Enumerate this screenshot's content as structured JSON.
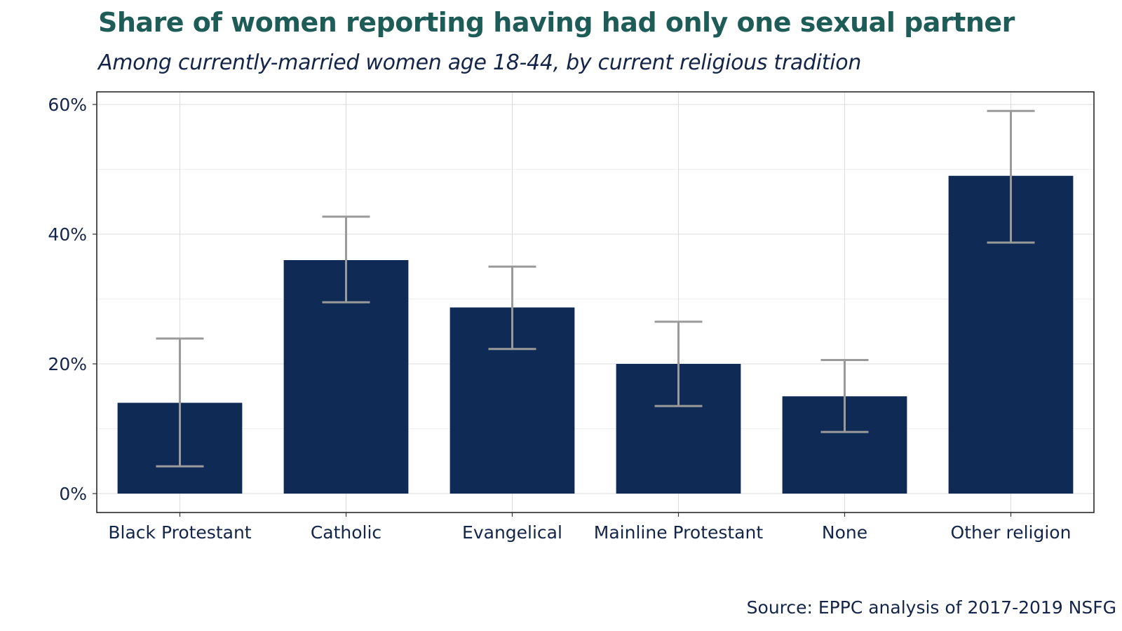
{
  "chart_data": {
    "type": "bar",
    "title": "Share of women reporting having had only one sexual partner",
    "subtitle": "Among currently-married women age 18-44, by current religious tradition",
    "source": "Source: EPPC analysis of 2017-2019 NSFG",
    "categories": [
      "Black Protestant",
      "Catholic",
      "Evangelical",
      "Mainline Protestant",
      "None",
      "Other religion"
    ],
    "values": [
      14.0,
      36.0,
      28.7,
      20.0,
      15.0,
      49.0
    ],
    "error_low": [
      4.2,
      29.5,
      22.3,
      13.5,
      9.5,
      38.7
    ],
    "error_high": [
      23.9,
      42.7,
      35.0,
      26.5,
      20.6,
      59.0
    ],
    "ylim": [
      0,
      62
    ],
    "yticks": [
      0,
      20,
      40,
      60
    ],
    "ytick_labels": [
      "0%",
      "20%",
      "40%",
      "60%"
    ],
    "grid": true,
    "bar_color": "#0f2b55",
    "error_bar_color": "#9a9a9a"
  }
}
